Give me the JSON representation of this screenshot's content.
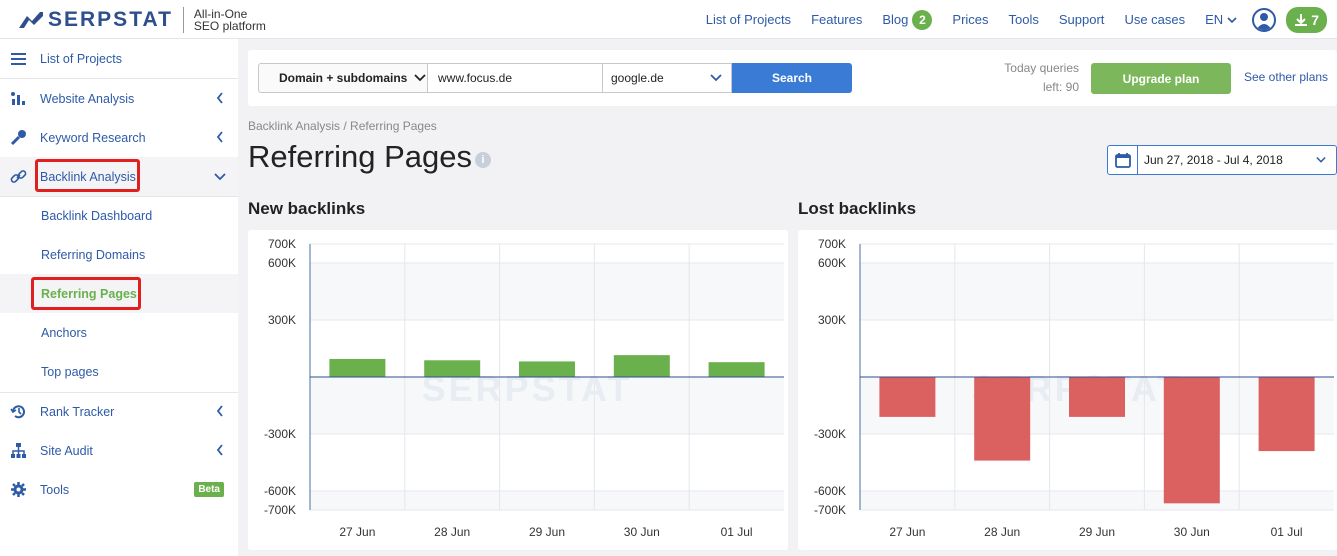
{
  "header": {
    "brand": "SERPSTAT",
    "tagline_1": "All-in-One",
    "tagline_2": "SEO platform",
    "nav": [
      "List of Projects",
      "Features",
      "Blog",
      "Prices",
      "Tools",
      "Support",
      "Use cases"
    ],
    "blog_count": "2",
    "lang": "EN",
    "downloads": "7"
  },
  "sidebar": {
    "items": [
      {
        "label": "List of Projects"
      },
      {
        "label": "Website Analysis"
      },
      {
        "label": "Keyword Research"
      },
      {
        "label": "Backlink Analysis"
      },
      {
        "label": "Backlink Dashboard"
      },
      {
        "label": "Referring Domains"
      },
      {
        "label": "Referring Pages"
      },
      {
        "label": "Anchors"
      },
      {
        "label": "Top pages"
      },
      {
        "label": "Rank Tracker"
      },
      {
        "label": "Site Audit"
      },
      {
        "label": "Tools"
      }
    ],
    "beta": "Beta"
  },
  "search": {
    "type": "Domain + subdomains",
    "domain": "www.focus.de",
    "database": "google.de",
    "button": "Search",
    "queries_line1": "Today queries",
    "queries_line2": "left: 90",
    "upgrade": "Upgrade plan",
    "other_plans": "See other plans"
  },
  "page": {
    "breadcrumb": "Backlink Analysis / Referring Pages",
    "title": "Referring Pages",
    "info": "i",
    "date_range": "Jun 27, 2018 - Jul 4, 2018"
  },
  "colors": {
    "accent": "#3a7bd5",
    "green": "#6ab04c",
    "red": "#db6161"
  },
  "chart_data": [
    {
      "type": "bar",
      "title": "New backlinks",
      "categories": [
        "27 Jun",
        "28 Jun",
        "29 Jun",
        "30 Jun",
        "01 Jul"
      ],
      "values": [
        95000,
        88000,
        82000,
        115000,
        78000
      ],
      "yticks": [
        700000,
        600000,
        300000,
        -300000,
        -600000,
        -700000
      ],
      "ytick_labels": [
        "700K",
        "600K",
        "300K",
        "-300K",
        "-600K",
        "-700K"
      ],
      "ylim": [
        -700000,
        700000
      ],
      "color": "#6ab04c",
      "watermark": "SERPSTAT"
    },
    {
      "type": "bar",
      "title": "Lost backlinks",
      "categories": [
        "27 Jun",
        "28 Jun",
        "29 Jun",
        "30 Jun",
        "01 Jul"
      ],
      "values": [
        -210000,
        -440000,
        -210000,
        -665000,
        -390000
      ],
      "yticks": [
        700000,
        600000,
        300000,
        -300000,
        -600000,
        -700000
      ],
      "ytick_labels": [
        "700K",
        "600K",
        "300K",
        "-300K",
        "-600K",
        "-700K"
      ],
      "ylim": [
        -700000,
        700000
      ],
      "color": "#db6161",
      "watermark": "SERPSTAT"
    }
  ]
}
